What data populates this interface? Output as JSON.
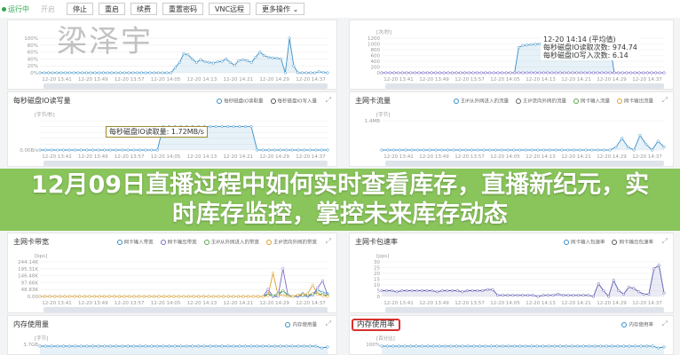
{
  "toolbar": {
    "status": "运行中",
    "buttons": [
      "开启",
      "停止",
      "重启",
      "续费",
      "重置密码",
      "VNC远程",
      "更多操作"
    ]
  },
  "watermark": "梁泽宇",
  "banner": {
    "title": "12月09日直播过程中如何实时查看库存，直播新纪元，实时库存监控，掌控未来库存动态",
    "accent": "#80c04c"
  },
  "x_labels": [
    "12-20 13:41",
    "12-20 13:49",
    "12-20 13:57",
    "12-20 14:05",
    "12-20 14:13",
    "12-20 14:21",
    "12-20 14:29",
    "12-20 14:37"
  ],
  "chart_data": [
    {
      "type": "area",
      "title": "",
      "unit": "",
      "yticks": [
        "0%",
        "20%",
        "40%",
        "60%",
        "80%",
        "100%"
      ],
      "ylim": [
        0,
        100
      ],
      "series": [
        {
          "color": "#3a8fc8",
          "values": [
            0,
            0,
            0,
            0,
            0,
            0,
            0,
            0,
            0,
            0,
            0,
            0,
            0,
            0,
            0,
            0,
            0,
            0,
            0,
            0,
            0,
            0,
            0,
            0,
            0,
            0,
            0,
            0,
            0,
            0,
            0,
            0,
            15,
            30,
            55,
            52,
            40,
            30,
            38,
            32,
            30,
            28,
            32,
            33,
            40,
            30,
            22,
            35,
            38,
            35,
            30,
            45,
            60,
            50,
            45,
            43,
            42,
            40,
            0,
            100,
            20,
            0,
            0,
            0,
            0,
            0,
            3,
            1,
            0
          ]
        }
      ]
    },
    {
      "type": "area",
      "title": "",
      "unit": "[次/秒]",
      "yticks": [
        "0",
        "200",
        "400",
        "600",
        "800",
        "1000",
        "1200"
      ],
      "ylim": [
        0,
        1200
      ],
      "series": [
        {
          "color": "#3a8fc8",
          "values": [
            0,
            0,
            0,
            0,
            0,
            0,
            0,
            0,
            0,
            0,
            0,
            0,
            0,
            0,
            0,
            0,
            0,
            0,
            0,
            0,
            0,
            0,
            0,
            0,
            0,
            0,
            0,
            0,
            0,
            0,
            0,
            0,
            0,
            880,
            950,
            960,
            980,
            990,
            1000,
            1010,
            990,
            1000,
            1020,
            950,
            940,
            1040,
            990,
            960,
            940,
            970,
            950,
            940,
            980,
            960,
            950,
            960,
            0,
            0,
            0,
            0,
            0,
            0,
            0,
            0,
            0,
            0,
            0,
            0,
            0
          ]
        },
        {
          "color": "#7b68c8",
          "values": [
            0,
            0,
            0,
            0,
            0,
            0,
            0,
            0,
            0,
            0,
            0,
            0,
            0,
            0,
            0,
            0,
            0,
            0,
            0,
            0,
            0,
            0,
            0,
            0,
            0,
            0,
            0,
            0,
            0,
            0,
            0,
            0,
            0,
            0,
            0,
            0,
            0,
            0,
            0,
            0,
            0,
            0,
            0,
            0,
            0,
            0,
            0,
            0,
            0,
            0,
            0,
            0,
            0,
            0,
            0,
            0,
            0,
            0,
            0,
            0,
            0,
            0,
            0,
            0,
            0,
            0,
            0,
            0,
            0
          ]
        }
      ],
      "tooltip": [
        "12-20 14:14 (平均值)",
        "每秒磁盘IO读取次数: 974.74",
        "每秒磁盘IO写入次数: 6.14"
      ]
    },
    {
      "type": "area",
      "title": "每秒磁盘IO读写量",
      "unit": "[字节/秒]",
      "yticks": [
        "0.00B/s",
        "",
        "",
        "",
        "",
        ""
      ],
      "ylim": [
        0,
        100
      ],
      "legend": [
        {
          "label": "每秒磁盘IO读取量",
          "color": "#3a8fc8"
        },
        {
          "label": "每秒磁盘IO写入量",
          "color": "#555"
        }
      ],
      "series": [
        {
          "color": "#3a8fc8",
          "values": [
            0,
            0,
            0,
            0,
            0,
            0,
            0,
            0,
            0,
            0,
            0,
            0,
            0,
            0,
            0,
            0,
            0,
            0,
            0,
            0,
            0,
            80,
            80,
            80,
            80,
            80,
            80,
            80,
            80,
            80,
            80,
            80,
            80,
            80,
            80,
            80,
            80,
            0,
            0,
            0,
            0,
            0,
            0,
            0,
            0,
            0,
            0,
            0,
            0,
            0
          ]
        }
      ],
      "tooltip": [
        "每秒磁盘IO读取量: 1.72MB/s"
      ]
    },
    {
      "type": "area",
      "title": "主网卡流量",
      "unit": "[字节]",
      "yticks": [
        "",
        "1.4MB"
      ],
      "ylim": [
        0,
        100
      ],
      "legend": [
        {
          "label": "主IP从外网进入的流量",
          "color": "#3a8fc8"
        },
        {
          "label": "主IP流向外网的流量",
          "color": "#666"
        },
        {
          "label": "网卡输入流量",
          "color": "#5aa84a"
        },
        {
          "label": "网卡输出流量",
          "color": "#e0a030"
        }
      ],
      "series": [
        {
          "color": "#3a8fc8",
          "values": [
            0,
            0,
            0,
            0,
            0,
            0,
            0,
            0,
            0,
            0,
            0,
            0,
            0,
            0,
            0,
            0,
            0,
            0,
            0,
            0,
            0,
            0,
            0,
            0,
            0,
            0,
            0,
            0,
            0,
            0,
            0,
            0,
            0,
            0,
            0,
            0,
            0,
            0,
            0,
            10,
            40,
            10,
            0,
            50,
            20,
            0,
            30,
            10
          ]
        }
      ]
    },
    {
      "type": "line",
      "title": "主网卡带宽",
      "unit": "[bps]",
      "yticks": [
        "0.00",
        "48.83K",
        "97.66K",
        "146.48K",
        "195.31K",
        "244.14K"
      ],
      "ylim": [
        0,
        244.14
      ],
      "legend": [
        {
          "label": "网卡输入带宽",
          "color": "#3a8fc8"
        },
        {
          "label": "网卡输出带宽",
          "color": "#7b68c8"
        },
        {
          "label": "主IP从外网进入的带宽",
          "color": "#5aa84a"
        },
        {
          "label": "主IP流向外网的带宽",
          "color": "#e0a030"
        }
      ],
      "series": [
        {
          "color": "#3a8fc8",
          "values": [
            0,
            0,
            0,
            0,
            0,
            0,
            0,
            0,
            0,
            0,
            0,
            0,
            0,
            0,
            0,
            0,
            0,
            0,
            0,
            0,
            0,
            0,
            0,
            0,
            0,
            0,
            0,
            0,
            0,
            0,
            0,
            0,
            0,
            0,
            0,
            0,
            0,
            0,
            0,
            0,
            0,
            0,
            0,
            0,
            0,
            0,
            20,
            0,
            5,
            40,
            10,
            0,
            0,
            5,
            0,
            10,
            45,
            30,
            20
          ]
        },
        {
          "color": "#7b68c8",
          "values": [
            0,
            0,
            0,
            0,
            0,
            0,
            0,
            0,
            0,
            0,
            0,
            0,
            0,
            0,
            0,
            0,
            0,
            0,
            0,
            0,
            0,
            0,
            0,
            0,
            0,
            0,
            0,
            0,
            0,
            0,
            0,
            0,
            0,
            0,
            0,
            0,
            0,
            0,
            0,
            0,
            0,
            0,
            0,
            0,
            0,
            0,
            50,
            0,
            0,
            195,
            10,
            0,
            5,
            20,
            5,
            10,
            60,
            110,
            10
          ]
        },
        {
          "color": "#5aa84a",
          "values": [
            0,
            0,
            0,
            0,
            0,
            0,
            0,
            0,
            0,
            0,
            0,
            0,
            0,
            0,
            0,
            0,
            0,
            0,
            0,
            0,
            0,
            0,
            0,
            0,
            0,
            0,
            0,
            0,
            0,
            0,
            0,
            0,
            0,
            0,
            0,
            0,
            0,
            0,
            0,
            0,
            0,
            0,
            0,
            0,
            0,
            0,
            10,
            5,
            20,
            40,
            5,
            0,
            10,
            15,
            10,
            20,
            20,
            15,
            5
          ]
        },
        {
          "color": "#e0a030",
          "values": [
            0,
            0,
            0,
            0,
            0,
            0,
            0,
            0,
            0,
            0,
            0,
            0,
            0,
            0,
            0,
            0,
            0,
            0,
            0,
            0,
            0,
            0,
            0,
            0,
            0,
            0,
            0,
            0,
            0,
            0,
            0,
            0,
            0,
            0,
            0,
            0,
            0,
            0,
            0,
            0,
            0,
            0,
            0,
            0,
            0,
            0,
            5,
            165,
            10,
            10,
            0,
            0,
            10,
            10,
            20,
            80,
            15,
            5,
            0
          ]
        }
      ]
    },
    {
      "type": "area",
      "title": "主网卡包速率",
      "unit": "[pps]",
      "yticks": [
        "0",
        "5",
        "10",
        "15",
        "20",
        "25",
        "30"
      ],
      "ylim": [
        0,
        30
      ],
      "legend": [
        {
          "label": "网卡输入包速率",
          "color": "#3a8fc8"
        },
        {
          "label": "网卡输出包速率",
          "color": "#555"
        }
      ],
      "series": [
        {
          "color": "#5a5ab0",
          "values": [
            5,
            5,
            5,
            4,
            5,
            5,
            5,
            5,
            5,
            5,
            5,
            4,
            5,
            5,
            5,
            5,
            4,
            5,
            5,
            5,
            5,
            6,
            6,
            1,
            1,
            1,
            1,
            1,
            1,
            1,
            1,
            0,
            1,
            1,
            1,
            2,
            1,
            1,
            1,
            1,
            1,
            1,
            0,
            11,
            5,
            0,
            14,
            5,
            2,
            8,
            7,
            4,
            2,
            2,
            24,
            27,
            3
          ]
        }
      ]
    },
    {
      "type": "area",
      "title": "内存使用量",
      "unit": "[字节]",
      "yticks": [
        "",
        "3.7GB"
      ],
      "ylim": [
        0,
        100
      ],
      "legend": [
        {
          "label": "内存使用量",
          "color": "#3a8fc8"
        }
      ],
      "series": [
        {
          "color": "#3a8fc8",
          "values": [
            90,
            90,
            90,
            90,
            90,
            90,
            90,
            90,
            90,
            90,
            90,
            90,
            90,
            90,
            90,
            90,
            90,
            90,
            90,
            90,
            90,
            90,
            90,
            90,
            90,
            90,
            90,
            90,
            90,
            90,
            90,
            90,
            90,
            90,
            90,
            90,
            90,
            90,
            90,
            90,
            90,
            90,
            90,
            90,
            90,
            90,
            90,
            90,
            80,
            85
          ]
        }
      ]
    },
    {
      "type": "area",
      "title": "内存使用率",
      "unit": "[百分比]",
      "yticks": [
        "",
        "100%"
      ],
      "ylim": [
        0,
        100
      ],
      "legend": [
        {
          "label": "内存使用率",
          "color": "#3a8fc8"
        }
      ],
      "series": [
        {
          "color": "#3a8fc8",
          "values": [
            90,
            90,
            90,
            90,
            90,
            90,
            90,
            90,
            90,
            90,
            90,
            90,
            90,
            90,
            90,
            90,
            90,
            90,
            90,
            90,
            90,
            90,
            90,
            90,
            90,
            90,
            90,
            90,
            90,
            90,
            90,
            90,
            90,
            90,
            90,
            90,
            90,
            90,
            90,
            90,
            90,
            90,
            90,
            90,
            90,
            90,
            90,
            90,
            80,
            85
          ]
        }
      ]
    }
  ]
}
